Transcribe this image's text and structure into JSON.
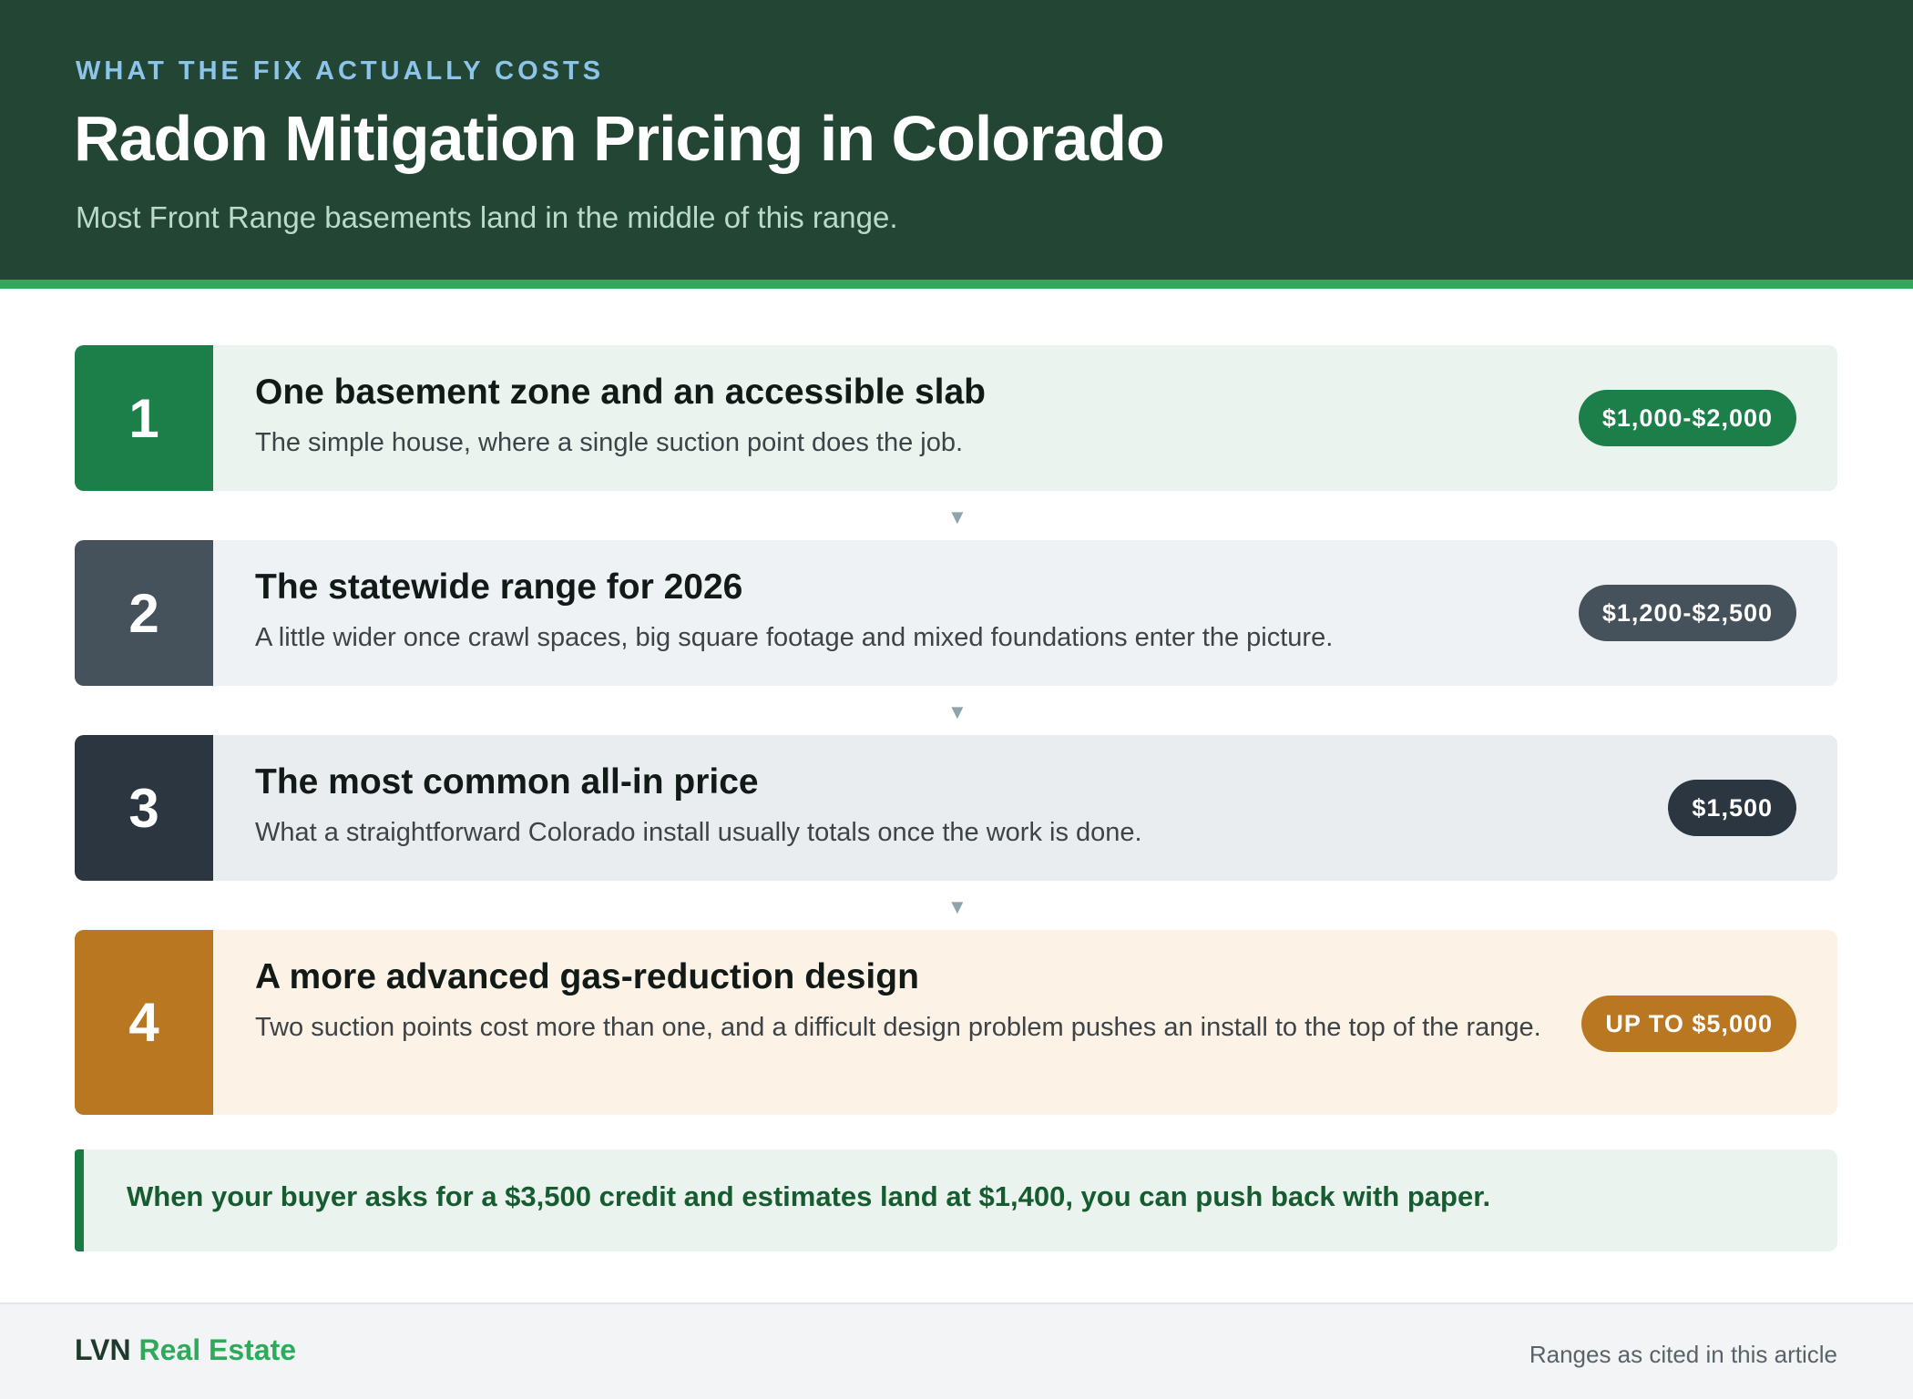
{
  "header": {
    "eyebrow": "WHAT THE FIX ACTUALLY COSTS",
    "title": "Radon Mitigation Pricing in Colorado",
    "subtitle": "Most Front Range basements land in the middle of this range."
  },
  "steps": [
    {
      "number": "1",
      "title": "One basement zone and an accessible slab",
      "description": "The simple house, where a single suction point does the job.",
      "price": "$1,000-$2,000",
      "accent": "#1c7f4a",
      "background": "#eaf3ed"
    },
    {
      "number": "2",
      "title": "The statewide range for 2026",
      "description": "A little wider once crawl spaces, big square footage and mixed foundations enter the picture.",
      "price": "$1,200-$2,500",
      "accent": "#45525c",
      "background": "#eef2f4"
    },
    {
      "number": "3",
      "title": "The most common all-in price",
      "description": "What a straightforward Colorado install usually totals once the work is done.",
      "price": "$1,500",
      "accent": "#2b3640",
      "background": "#e9edf0"
    },
    {
      "number": "4",
      "title": "A more advanced gas-reduction design",
      "description": "Two suction points cost more than one, and a difficult design problem pushes an install to the top of the range.",
      "price": "UP TO $5,000",
      "accent": "#b97721",
      "background": "#fcf2e6"
    }
  ],
  "connector_icon": "down-triangle-icon",
  "callout": {
    "text": "When your buyer asks for a $3,500 credit and estimates land at $1,400, you can push back with paper."
  },
  "footer": {
    "brand_part1": "LVN",
    "brand_part2": "Real Estate",
    "note": "Ranges as cited in this article"
  }
}
